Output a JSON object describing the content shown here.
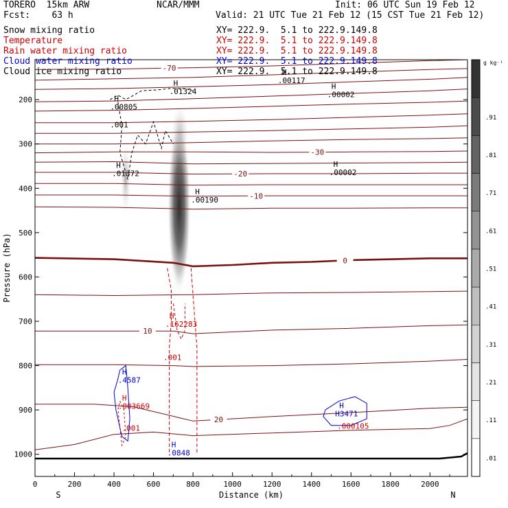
{
  "header": {
    "model": "TORERO  15km ARW",
    "forecast": "Fcst:    63 h",
    "center": "NCAR/MMM",
    "init": "Init: 06 UTC Sun 19 Feb 12",
    "valid": "Valid: 21 UTC Tue 21 Feb 12 (15 CST Tue 21 Feb 12)"
  },
  "fields": [
    {
      "name": "Snow mixing ratio",
      "color": "#000000",
      "xy": "XY= 222.9.  5.1 to 222.9.149.8"
    },
    {
      "name": "Temperature",
      "color": "#cc0000",
      "xy": "XY= 222.9.  5.1 to 222.9.149.8"
    },
    {
      "name": "Rain water mixing ratio",
      "color": "#cc0000",
      "xy": "XY= 222.9.  5.1 to 222.9.149.8"
    },
    {
      "name": "Cloud water mixing ratio",
      "color": "#0000cc",
      "xy": "XY= 222.9.  5.1 to 222.9.149.8"
    },
    {
      "name": "Cloud ice mixing ratio",
      "color": "#000000",
      "xy": "XY= 222.9.  5.1 to 222.9.149.8"
    }
  ],
  "chart_data": {
    "type": "cross-section",
    "xlabel": "Distance (km)",
    "ylabel": "Pressure (hPa)",
    "xlim": [
      0,
      2190
    ],
    "ylim": [
      1050,
      110
    ],
    "x_ticks": [
      0,
      200,
      400,
      600,
      800,
      1000,
      1200,
      1400,
      1600,
      1800,
      2000
    ],
    "y_ticks": [
      200,
      300,
      400,
      500,
      600,
      700,
      800,
      900,
      1000
    ],
    "direction_left": "S",
    "direction_right": "N",
    "colorbar_units": "g kg⁻¹",
    "colorbar_ticks": [
      ".01",
      ".11",
      ".21",
      ".31",
      ".41",
      ".51",
      ".61",
      ".71",
      ".81",
      ".91"
    ],
    "colorbar_colors": [
      "#ffffff",
      "#f4f4f4",
      "#e4e4e4",
      "#d2d2d2",
      "#bfbfbf",
      "#aaaaaa",
      "#939393",
      "#7b7b7b",
      "#636363",
      "#4b4b4b",
      "#333333"
    ],
    "temperature_isotherms": [
      {
        "value": -70,
        "label": "-70",
        "label_x": 680,
        "points": [
          [
            0,
            132
          ],
          [
            400,
            131
          ],
          [
            800,
            128
          ],
          [
            1200,
            124
          ],
          [
            1600,
            118
          ],
          [
            2000,
            112
          ],
          [
            2190,
            110
          ]
        ]
      },
      {
        "value": -65,
        "points": [
          [
            0,
            156
          ],
          [
            400,
            153
          ],
          [
            800,
            150
          ],
          [
            1200,
            144
          ],
          [
            1600,
            138
          ],
          [
            2000,
            132
          ],
          [
            2190,
            130
          ]
        ]
      },
      {
        "value": -60,
        "points": [
          [
            0,
            177
          ],
          [
            400,
            175
          ],
          [
            800,
            171
          ],
          [
            1200,
            166
          ],
          [
            1600,
            160
          ],
          [
            2000,
            154
          ],
          [
            2190,
            150
          ]
        ]
      },
      {
        "value": -55,
        "points": [
          [
            0,
            205
          ],
          [
            400,
            203
          ],
          [
            800,
            198
          ],
          [
            1200,
            192
          ],
          [
            1600,
            186
          ],
          [
            2000,
            180
          ],
          [
            2190,
            176
          ]
        ]
      },
      {
        "value": -50,
        "points": [
          [
            0,
            226
          ],
          [
            400,
            224
          ],
          [
            800,
            220
          ],
          [
            1200,
            215
          ],
          [
            1600,
            210
          ],
          [
            2000,
            206
          ],
          [
            2190,
            203
          ]
        ]
      },
      {
        "value": -45,
        "points": [
          [
            0,
            252
          ],
          [
            400,
            252
          ],
          [
            800,
            249
          ],
          [
            1200,
            245
          ],
          [
            1600,
            240
          ],
          [
            2000,
            235
          ],
          [
            2190,
            232
          ]
        ]
      },
      {
        "value": -40,
        "points": [
          [
            0,
            276
          ],
          [
            400,
            276
          ],
          [
            800,
            273
          ],
          [
            1200,
            270
          ],
          [
            1600,
            266
          ],
          [
            2000,
            262
          ],
          [
            2190,
            259
          ]
        ]
      },
      {
        "value": -35,
        "points": [
          [
            0,
            300
          ],
          [
            400,
            300
          ],
          [
            800,
            297
          ],
          [
            1200,
            293
          ],
          [
            1600,
            290
          ],
          [
            2000,
            288
          ],
          [
            2190,
            286
          ]
        ]
      },
      {
        "value": -30,
        "label": "-30",
        "label_x": 1430,
        "points": [
          [
            0,
            320
          ],
          [
            400,
            318
          ],
          [
            800,
            318
          ],
          [
            1200,
            319
          ],
          [
            1600,
            318
          ],
          [
            2000,
            317
          ],
          [
            2190,
            316
          ]
        ]
      },
      {
        "value": -25,
        "points": [
          [
            0,
            341
          ],
          [
            400,
            340
          ],
          [
            800,
            345
          ],
          [
            1200,
            344
          ],
          [
            1600,
            343
          ],
          [
            2000,
            342
          ],
          [
            2190,
            341
          ]
        ]
      },
      {
        "value": -20,
        "label": "-20",
        "label_x": 1040,
        "points": [
          [
            0,
            364
          ],
          [
            400,
            364
          ],
          [
            800,
            368
          ],
          [
            1200,
            367
          ],
          [
            1600,
            367
          ],
          [
            2000,
            366
          ],
          [
            2190,
            366
          ]
        ]
      },
      {
        "value": -15,
        "points": [
          [
            0,
            389
          ],
          [
            400,
            389
          ],
          [
            800,
            393
          ],
          [
            1200,
            392
          ],
          [
            1600,
            392
          ],
          [
            2000,
            392
          ],
          [
            2190,
            392
          ]
        ]
      },
      {
        "value": -10,
        "label": "-10",
        "label_x": 1120,
        "points": [
          [
            0,
            415
          ],
          [
            400,
            415
          ],
          [
            800,
            418
          ],
          [
            1200,
            417
          ],
          [
            1600,
            417
          ],
          [
            2000,
            417
          ],
          [
            2190,
            417
          ]
        ]
      },
      {
        "value": -5,
        "points": [
          [
            0,
            442
          ],
          [
            400,
            443
          ],
          [
            800,
            447
          ],
          [
            1200,
            445
          ],
          [
            1600,
            445
          ],
          [
            2000,
            444
          ],
          [
            2190,
            444
          ]
        ]
      },
      {
        "value": 0,
        "label": "0",
        "label_x": 1570,
        "bold": true,
        "points": [
          [
            0,
            557
          ],
          [
            400,
            560
          ],
          [
            700,
            568
          ],
          [
            800,
            576
          ],
          [
            1000,
            573
          ],
          [
            1200,
            568
          ],
          [
            1400,
            566
          ],
          [
            1600,
            562
          ],
          [
            2000,
            558
          ],
          [
            2190,
            558
          ]
        ]
      },
      {
        "value": 5,
        "points": [
          [
            0,
            640
          ],
          [
            400,
            642
          ],
          [
            800,
            640
          ],
          [
            1200,
            636
          ],
          [
            1600,
            635
          ],
          [
            2000,
            633
          ],
          [
            2190,
            632
          ]
        ]
      },
      {
        "value": 10,
        "label": "10",
        "label_x": 570,
        "points": [
          [
            0,
            722
          ],
          [
            400,
            722
          ],
          [
            700,
            722
          ],
          [
            800,
            728
          ],
          [
            1200,
            720
          ],
          [
            1600,
            716
          ],
          [
            2000,
            710
          ],
          [
            2190,
            708
          ]
        ]
      },
      {
        "value": 15,
        "points": [
          [
            0,
            798
          ],
          [
            400,
            798
          ],
          [
            700,
            800
          ],
          [
            800,
            802
          ],
          [
            1200,
            800
          ],
          [
            1600,
            796
          ],
          [
            2000,
            790
          ],
          [
            2190,
            786
          ]
        ]
      },
      {
        "value": 20,
        "label": "20",
        "label_x": 930,
        "points": [
          [
            0,
            887
          ],
          [
            300,
            887
          ],
          [
            500,
            893
          ],
          [
            800,
            925
          ],
          [
            1200,
            915
          ],
          [
            1600,
            906
          ],
          [
            2000,
            896
          ],
          [
            2190,
            894
          ]
        ]
      },
      {
        "value": 25,
        "points": [
          [
            0,
            990
          ],
          [
            200,
            978
          ],
          [
            400,
            955
          ],
          [
            600,
            950
          ],
          [
            800,
            958
          ],
          [
            1200,
            952
          ],
          [
            1600,
            946
          ],
          [
            2000,
            942
          ],
          [
            2100,
            935
          ],
          [
            2190,
            920
          ]
        ]
      }
    ],
    "tropopause_markers": [
      {
        "label": "H",
        "value": ".00117",
        "x": 1230,
        "y": 150
      },
      {
        "label": "H",
        "value": ".01324",
        "x": 680,
        "y": 175
      },
      {
        "label": "H",
        "value": ".00002",
        "x": 1480,
        "y": 182
      },
      {
        "label": "H",
        "value": ".00805",
        "x": 380,
        "y": 210
      },
      {
        "label": "",
        "value": ".001",
        "x": 380,
        "y": 250
      },
      {
        "label": "H",
        "value": ".01372",
        "x": 390,
        "y": 360
      },
      {
        "label": "H",
        "value": ".00002",
        "x": 1490,
        "y": 358
      },
      {
        "label": "H",
        "value": ".00190",
        "x": 790,
        "y": 420
      }
    ],
    "cloud_water_markers": [
      {
        "label": "H",
        "value": ".4587",
        "x": 420,
        "y": 826
      },
      {
        "label": "H",
        "value": ".0848",
        "x": 670,
        "y": 990
      },
      {
        "label": "H",
        "value": "H3471",
        "x": 1520,
        "y": 902
      }
    ],
    "rain_markers": [
      {
        "label": "H",
        "value": ".162283",
        "x": 660,
        "y": 700
      },
      {
        "label": "",
        "value": ".001",
        "x": 650,
        "y": 775
      },
      {
        "label": "H",
        "value": ".003669",
        "x": 420,
        "y": 885
      },
      {
        "label": "",
        "value": ".001",
        "x": 440,
        "y": 935
      },
      {
        "label": "",
        "value": ".000105",
        "x": 1530,
        "y": 930
      }
    ]
  }
}
